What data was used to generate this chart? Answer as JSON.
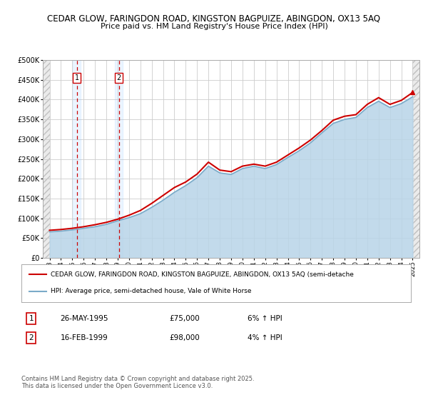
{
  "title_line1": "CEDAR GLOW, FARINGDON ROAD, KINGSTON BAGPUIZE, ABINGDON, OX13 5AQ",
  "title_line2": "Price paid vs. HM Land Registry's House Price Index (HPI)",
  "ylim": [
    0,
    500000
  ],
  "yticks": [
    0,
    50000,
    100000,
    150000,
    200000,
    250000,
    300000,
    350000,
    400000,
    450000,
    500000
  ],
  "ytick_labels": [
    "£0",
    "£50K",
    "£100K",
    "£150K",
    "£200K",
    "£250K",
    "£300K",
    "£350K",
    "£400K",
    "£450K",
    "£500K"
  ],
  "background_color": "#ffffff",
  "grid_color": "#cccccc",
  "legend_line1": "CEDAR GLOW, FARINGDON ROAD, KINGSTON BAGPUIZE, ABINGDON, OX13 5AQ (semi-detache",
  "legend_line2": "HPI: Average price, semi-detached house, Vale of White Horse",
  "footer": "Contains HM Land Registry data © Crown copyright and database right 2025.\nThis data is licensed under the Open Government Licence v3.0.",
  "purchase1_date": "26-MAY-1995",
  "purchase1_price": "£75,000",
  "purchase1_hpi": "6% ↑ HPI",
  "purchase2_date": "16-FEB-1999",
  "purchase2_price": "£98,000",
  "purchase2_hpi": "4% ↑ HPI",
  "price_paid_color": "#cc0000",
  "hpi_fill_color": "#b8d4e8",
  "hpi_line_color": "#7aaac8",
  "marker1_x": 1995.4,
  "marker2_x": 1999.1,
  "xtick_start": 1993,
  "xtick_end": 2025,
  "xlim_left": 1992.4,
  "xlim_right": 2025.6,
  "years": [
    1993,
    1994,
    1995,
    1996,
    1997,
    1998,
    1999,
    2000,
    2001,
    2002,
    2003,
    2004,
    2005,
    2006,
    2007,
    2008,
    2009,
    2010,
    2011,
    2012,
    2013,
    2014,
    2015,
    2016,
    2017,
    2018,
    2019,
    2020,
    2021,
    2022,
    2023,
    2024,
    2025
  ],
  "price_paid_values": [
    70000,
    72000,
    75000,
    79000,
    84000,
    90000,
    98000,
    108000,
    120000,
    138000,
    158000,
    178000,
    192000,
    212000,
    242000,
    222000,
    218000,
    232000,
    237000,
    232000,
    242000,
    260000,
    278000,
    298000,
    322000,
    348000,
    358000,
    362000,
    388000,
    405000,
    388000,
    398000,
    418000
  ],
  "hpi_values": [
    66000,
    68000,
    71000,
    75000,
    79000,
    85000,
    94000,
    102000,
    112000,
    128000,
    146000,
    166000,
    183000,
    203000,
    232000,
    215000,
    211000,
    226000,
    232000,
    226000,
    236000,
    254000,
    271000,
    291000,
    316000,
    340000,
    350000,
    355000,
    380000,
    396000,
    380000,
    390000,
    407000
  ]
}
